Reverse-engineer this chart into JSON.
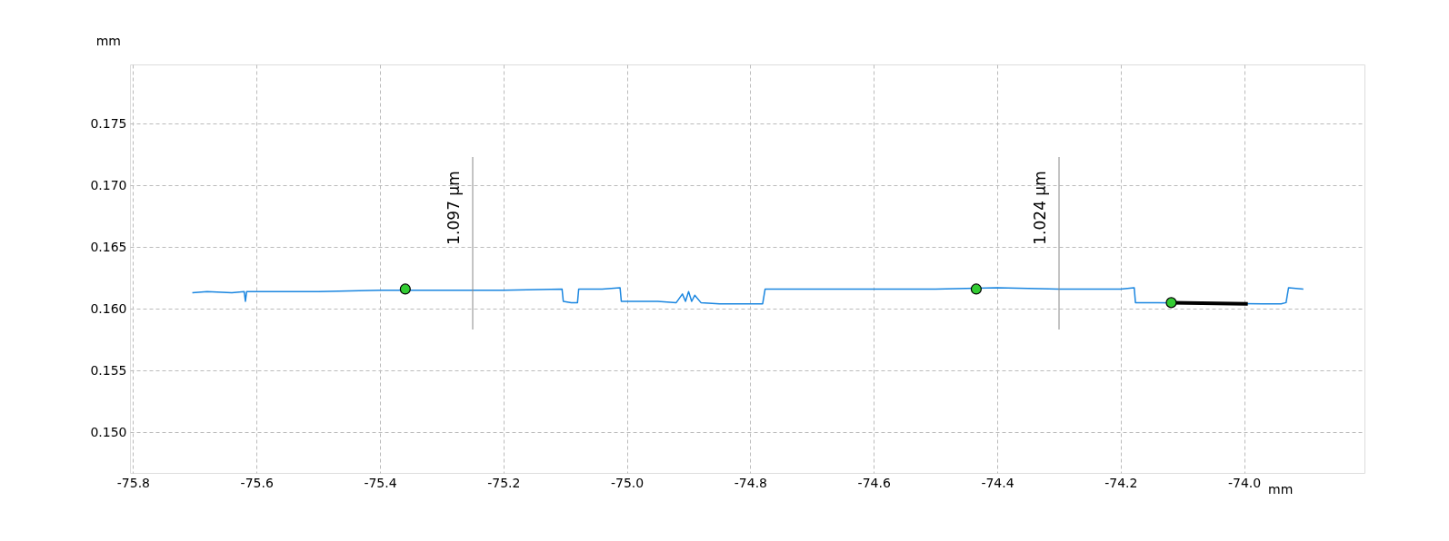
{
  "chart_data": {
    "type": "line",
    "xlabel": "mm",
    "ylabel": "mm",
    "xlim": [
      -75.805,
      -73.805
    ],
    "ylim": [
      0.1467,
      0.1798
    ],
    "xticks": [
      {
        "value": -75.8,
        "label": "-75.8"
      },
      {
        "value": -75.6,
        "label": "-75.6"
      },
      {
        "value": -75.4,
        "label": "-75.4"
      },
      {
        "value": -75.2,
        "label": "-75.2"
      },
      {
        "value": -75.0,
        "label": "-75.0"
      },
      {
        "value": -74.8,
        "label": "-74.8"
      },
      {
        "value": -74.6,
        "label": "-74.6"
      },
      {
        "value": -74.4,
        "label": "-74.4"
      },
      {
        "value": -74.2,
        "label": "-74.2"
      },
      {
        "value": -74.0,
        "label": "-74.0"
      }
    ],
    "yticks": [
      {
        "value": 0.15,
        "label": "0.150"
      },
      {
        "value": 0.155,
        "label": "0.155"
      },
      {
        "value": 0.16,
        "label": "0.160"
      },
      {
        "value": 0.165,
        "label": "0.165"
      },
      {
        "value": 0.17,
        "label": "0.170"
      },
      {
        "value": 0.175,
        "label": "0.175"
      }
    ],
    "grid": true,
    "series": [
      {
        "color": "#1a86e0",
        "x": [
          -75.704,
          -75.68,
          -75.64,
          -75.62,
          -75.618,
          -75.616,
          -75.58,
          -75.5,
          -75.4,
          -75.3,
          -75.2,
          -75.105,
          -75.103,
          -75.09,
          -75.08,
          -75.078,
          -75.04,
          -75.011,
          -75.009,
          -74.95,
          -74.92,
          -74.91,
          -74.905,
          -74.9,
          -74.895,
          -74.89,
          -74.88,
          -74.85,
          -74.78,
          -74.776,
          -74.7,
          -74.6,
          -74.5,
          -74.4,
          -74.3,
          -74.2,
          -74.178,
          -74.176,
          -74.14,
          -73.97,
          -73.94,
          -73.932,
          -73.928,
          -73.904
        ],
        "values": [
          0.1613,
          0.1614,
          0.1613,
          0.1614,
          0.1606,
          0.1614,
          0.1614,
          0.1614,
          0.1615,
          0.1615,
          0.1615,
          0.1616,
          0.1606,
          0.1605,
          0.1605,
          0.1616,
          0.1616,
          0.1617,
          0.1606,
          0.1606,
          0.1605,
          0.1612,
          0.1606,
          0.1614,
          0.1606,
          0.1611,
          0.1605,
          0.1604,
          0.1604,
          0.1616,
          0.1616,
          0.1616,
          0.1616,
          0.1617,
          0.1616,
          0.1616,
          0.1617,
          0.1605,
          0.1605,
          0.1604,
          0.1604,
          0.1605,
          0.1617,
          0.1616
        ]
      },
      {
        "color": "#000000",
        "x": [
          -74.118,
          -73.994
        ],
        "values": [
          0.1605,
          0.1604
        ]
      },
      {
        "type": "scatter",
        "color": "#33cc33",
        "x": [
          -75.359,
          -74.434,
          -74.118
        ],
        "values": [
          0.1616,
          0.1616,
          0.1605
        ]
      }
    ],
    "annotations": [
      "1.097 µm",
      "1.024 µm"
    ]
  }
}
